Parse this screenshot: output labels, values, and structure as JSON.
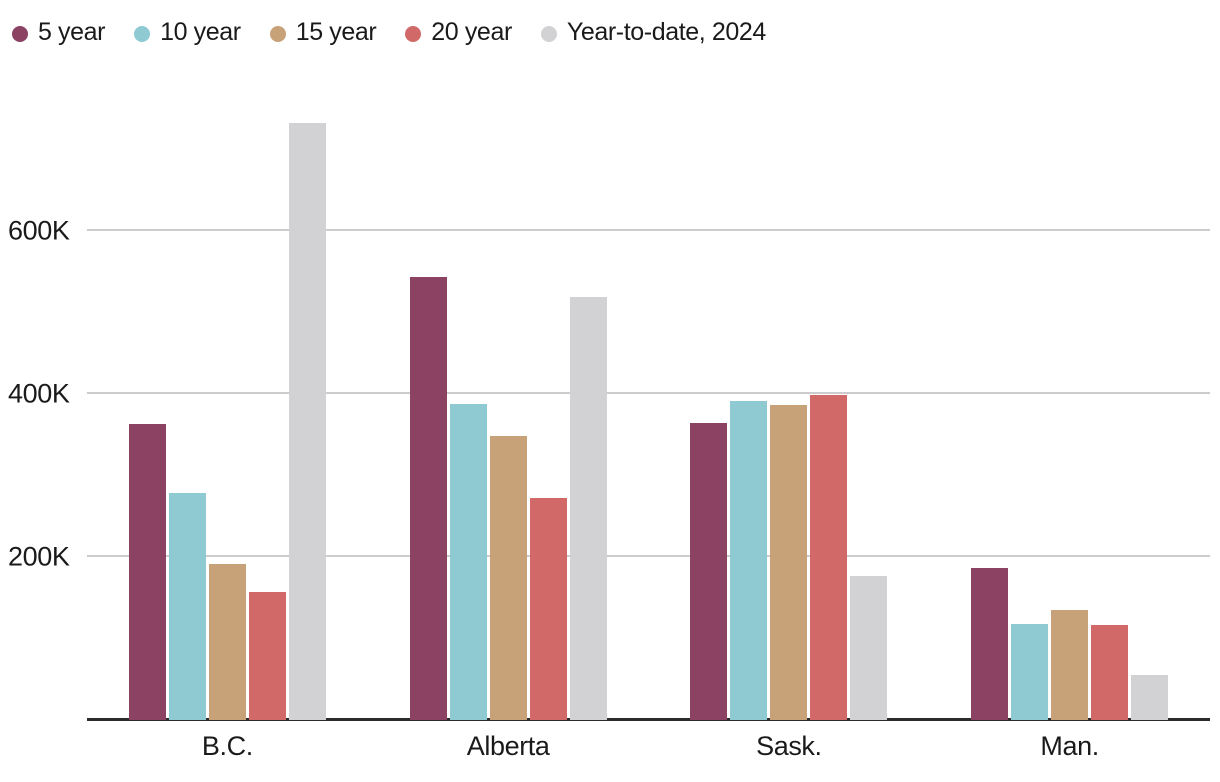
{
  "chart_data": {
    "type": "bar",
    "title": "",
    "categories": [
      "B.C.",
      "Alberta",
      "Sask.",
      "Man."
    ],
    "series": [
      {
        "name": "5 year",
        "color": "#8B4263",
        "values": [
          363,
          543,
          364,
          186
        ]
      },
      {
        "name": "10 year",
        "color": "#8FCAD3",
        "values": [
          278,
          388,
          392,
          118
        ]
      },
      {
        "name": "15 year",
        "color": "#C7A177",
        "values": [
          191,
          348,
          386,
          135
        ]
      },
      {
        "name": "20 year",
        "color": "#D16968",
        "values": [
          157,
          273,
          399,
          117
        ]
      },
      {
        "name": "Year-to-date, 2024",
        "color": "#D2D2D4",
        "values": [
          732,
          519,
          177,
          55
        ]
      }
    ],
    "unit": "thousands",
    "y_ticks": [
      200,
      400,
      600
    ],
    "y_tick_labels": [
      "200K",
      "400K",
      "600K"
    ],
    "ylim": [
      0,
      770
    ],
    "grid": "horizontal",
    "legend_position": "top-left",
    "colors": {
      "text": "#1a1a1a",
      "axis_line": "#2b2b2b",
      "gridline": "#cccccc",
      "background": "#ffffff"
    }
  }
}
